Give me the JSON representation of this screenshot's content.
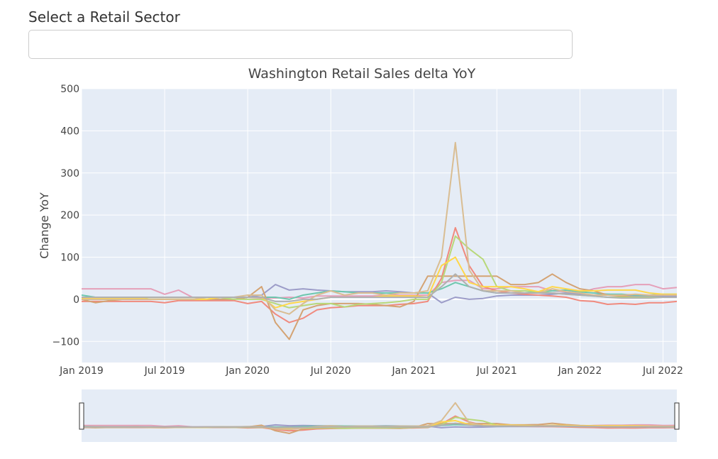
{
  "selector": {
    "label": "Select a Retail Sector",
    "value": ""
  },
  "chart_data": {
    "type": "line",
    "title": "Washington Retail Sales delta YoY",
    "xlabel": "",
    "ylabel": "Change YoY",
    "ylim": [
      -150,
      500
    ],
    "yticks": [
      500,
      400,
      300,
      200,
      100,
      0,
      -100
    ],
    "ytick_labels": [
      "500",
      "400",
      "300",
      "200",
      "100",
      "0",
      "−100"
    ],
    "x_start": "Jan 2019",
    "x_months": 43,
    "xticks": [
      {
        "label": "Jan 2019",
        "month": 0
      },
      {
        "label": "Jul 2019",
        "month": 6
      },
      {
        "label": "Jan 2020",
        "month": 12
      },
      {
        "label": "Jul 2020",
        "month": 18
      },
      {
        "label": "Jan 2021",
        "month": 24
      },
      {
        "label": "Jul 2021",
        "month": 30
      },
      {
        "label": "Jan 2022",
        "month": 36
      },
      {
        "label": "Jul 2022",
        "month": 42
      }
    ],
    "grid": true,
    "rangeslider": true,
    "series": [
      {
        "color": "#e5a0b9",
        "values": [
          25,
          25,
          25,
          25,
          25,
          25,
          12,
          22,
          5,
          5,
          5,
          5,
          5,
          3,
          3,
          5,
          3,
          8,
          8,
          8,
          8,
          8,
          10,
          10,
          10,
          10,
          40,
          45,
          45,
          25,
          25,
          30,
          30,
          30,
          20,
          18,
          15,
          25,
          30,
          30,
          35,
          35,
          25,
          28,
          30
        ]
      },
      {
        "color": "#9c9cc8",
        "values": [
          0,
          0,
          0,
          0,
          0,
          0,
          0,
          0,
          0,
          0,
          0,
          0,
          5,
          10,
          35,
          22,
          25,
          22,
          20,
          18,
          18,
          18,
          20,
          18,
          15,
          15,
          -8,
          5,
          0,
          2,
          8,
          10,
          10,
          10,
          12,
          15,
          12,
          10,
          12,
          10,
          8,
          8,
          8,
          8,
          8
        ]
      },
      {
        "color": "#6dc7ae",
        "values": [
          10,
          5,
          3,
          3,
          3,
          0,
          0,
          0,
          0,
          0,
          0,
          0,
          5,
          5,
          5,
          0,
          10,
          15,
          20,
          18,
          15,
          15,
          15,
          15,
          15,
          15,
          25,
          40,
          30,
          20,
          15,
          15,
          15,
          18,
          20,
          22,
          18,
          15,
          12,
          12,
          10,
          10,
          12,
          12,
          15
        ]
      },
      {
        "color": "#f08a7e",
        "values": [
          -5,
          -5,
          -5,
          -5,
          -5,
          -5,
          -8,
          -3,
          -3,
          -3,
          -3,
          -3,
          -10,
          -5,
          -35,
          -55,
          -45,
          -25,
          -20,
          -18,
          -15,
          -15,
          -15,
          -12,
          -10,
          -5,
          50,
          170,
          80,
          30,
          20,
          15,
          12,
          10,
          8,
          5,
          -3,
          -5,
          -12,
          -10,
          -12,
          -8,
          -8,
          -5,
          -10
        ]
      },
      {
        "color": "#d4a373",
        "values": [
          0,
          -8,
          -3,
          0,
          0,
          0,
          0,
          0,
          0,
          0,
          0,
          0,
          5,
          30,
          -55,
          -95,
          -25,
          -15,
          -10,
          -10,
          -10,
          -12,
          -15,
          -18,
          -5,
          55,
          55,
          55,
          55,
          55,
          55,
          35,
          35,
          40,
          60,
          40,
          25,
          20,
          10,
          8,
          5,
          5,
          5,
          5,
          5
        ]
      },
      {
        "color": "#b8d87a",
        "values": [
          5,
          0,
          0,
          0,
          5,
          0,
          0,
          0,
          0,
          0,
          5,
          0,
          0,
          0,
          -10,
          -20,
          -15,
          -10,
          -10,
          -18,
          -12,
          -10,
          -8,
          -5,
          0,
          0,
          40,
          150,
          120,
          95,
          30,
          20,
          20,
          18,
          15,
          12,
          10,
          8,
          5,
          5,
          5,
          5,
          5,
          5,
          8
        ]
      },
      {
        "color": "#ffd74a",
        "values": [
          3,
          3,
          3,
          3,
          3,
          0,
          0,
          0,
          0,
          0,
          5,
          5,
          5,
          5,
          -20,
          -10,
          -5,
          0,
          5,
          5,
          5,
          5,
          8,
          8,
          8,
          5,
          80,
          100,
          40,
          30,
          30,
          30,
          25,
          18,
          30,
          25,
          20,
          20,
          22,
          22,
          22,
          15,
          12,
          12,
          10
        ]
      },
      {
        "color": "#d9bd92",
        "values": [
          0,
          0,
          0,
          0,
          0,
          0,
          0,
          0,
          0,
          5,
          5,
          5,
          10,
          10,
          -25,
          -35,
          -10,
          10,
          20,
          10,
          15,
          15,
          10,
          15,
          15,
          20,
          100,
          372,
          70,
          20,
          20,
          20,
          15,
          15,
          25,
          18,
          15,
          10,
          10,
          10,
          12,
          10,
          10,
          10,
          12
        ]
      },
      {
        "color": "#b0b0b0",
        "values": [
          5,
          5,
          5,
          5,
          5,
          5,
          5,
          5,
          5,
          5,
          5,
          5,
          5,
          5,
          -5,
          -5,
          0,
          0,
          5,
          5,
          5,
          5,
          5,
          5,
          5,
          5,
          30,
          60,
          30,
          20,
          15,
          15,
          15,
          15,
          15,
          12,
          10,
          8,
          5,
          3,
          3,
          3,
          5,
          5,
          5
        ]
      }
    ]
  }
}
